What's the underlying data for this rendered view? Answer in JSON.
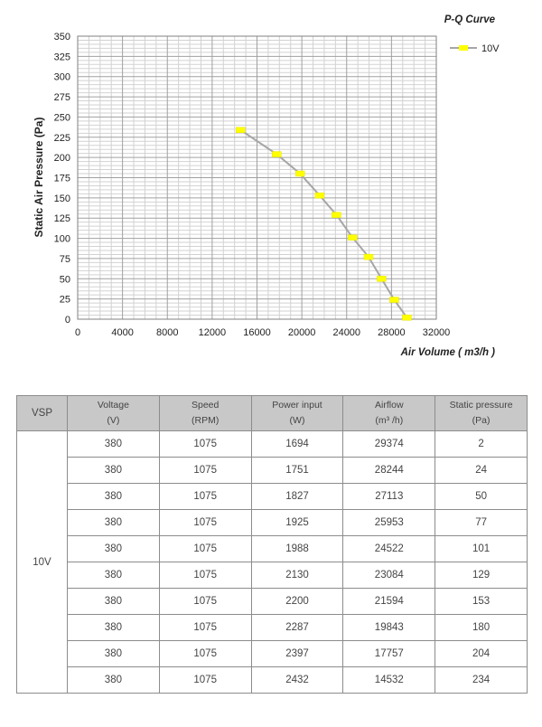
{
  "chart_data": {
    "type": "line",
    "title": "P-Q Curve",
    "xlabel": "Air Volume ( m3/h )",
    "ylabel": "Static Air Pressure  (Pa)",
    "xlim": [
      0,
      32000
    ],
    "ylim": [
      0,
      350
    ],
    "x_ticks": [
      "0",
      "4000",
      "8000",
      "12000",
      "16000",
      "20000",
      "24000",
      "28000",
      "32000"
    ],
    "y_ticks": [
      "0",
      "25",
      "50",
      "75",
      "100",
      "125",
      "150",
      "175",
      "200",
      "225",
      "250",
      "275",
      "300",
      "325",
      "350"
    ],
    "grid": true,
    "legend_position": "top-right",
    "series": [
      {
        "name": "10V",
        "color": "#ffff00",
        "line_color": "#a6a6a6",
        "x": [
          14532,
          17757,
          19843,
          21594,
          23084,
          24522,
          25953,
          27113,
          28244,
          29374
        ],
        "y": [
          234,
          204,
          180,
          153,
          129,
          101,
          77,
          50,
          24,
          2
        ]
      }
    ]
  },
  "table": {
    "headers": [
      {
        "line1": "VSP",
        "line2": ""
      },
      {
        "line1": "Voltage",
        "line2": "(V)"
      },
      {
        "line1": "Speed",
        "line2": "(RPM)"
      },
      {
        "line1": "Power input",
        "line2": "(W)"
      },
      {
        "line1": "Airflow",
        "line2": "(m³ /h)"
      },
      {
        "line1": "Static pressure",
        "line2": "(Pa)"
      }
    ],
    "vsp": "10V",
    "rows": [
      [
        "380",
        "1075",
        "1694",
        "29374",
        "2"
      ],
      [
        "380",
        "1075",
        "1751",
        "28244",
        "24"
      ],
      [
        "380",
        "1075",
        "1827",
        "27113",
        "50"
      ],
      [
        "380",
        "1075",
        "1925",
        "25953",
        "77"
      ],
      [
        "380",
        "1075",
        "1988",
        "24522",
        "101"
      ],
      [
        "380",
        "1075",
        "2130",
        "23084",
        "129"
      ],
      [
        "380",
        "1075",
        "2200",
        "21594",
        "153"
      ],
      [
        "380",
        "1075",
        "2287",
        "19843",
        "180"
      ],
      [
        "380",
        "1075",
        "2397",
        "17757",
        "204"
      ],
      [
        "380",
        "1075",
        "2432",
        "14532",
        "234"
      ]
    ]
  }
}
